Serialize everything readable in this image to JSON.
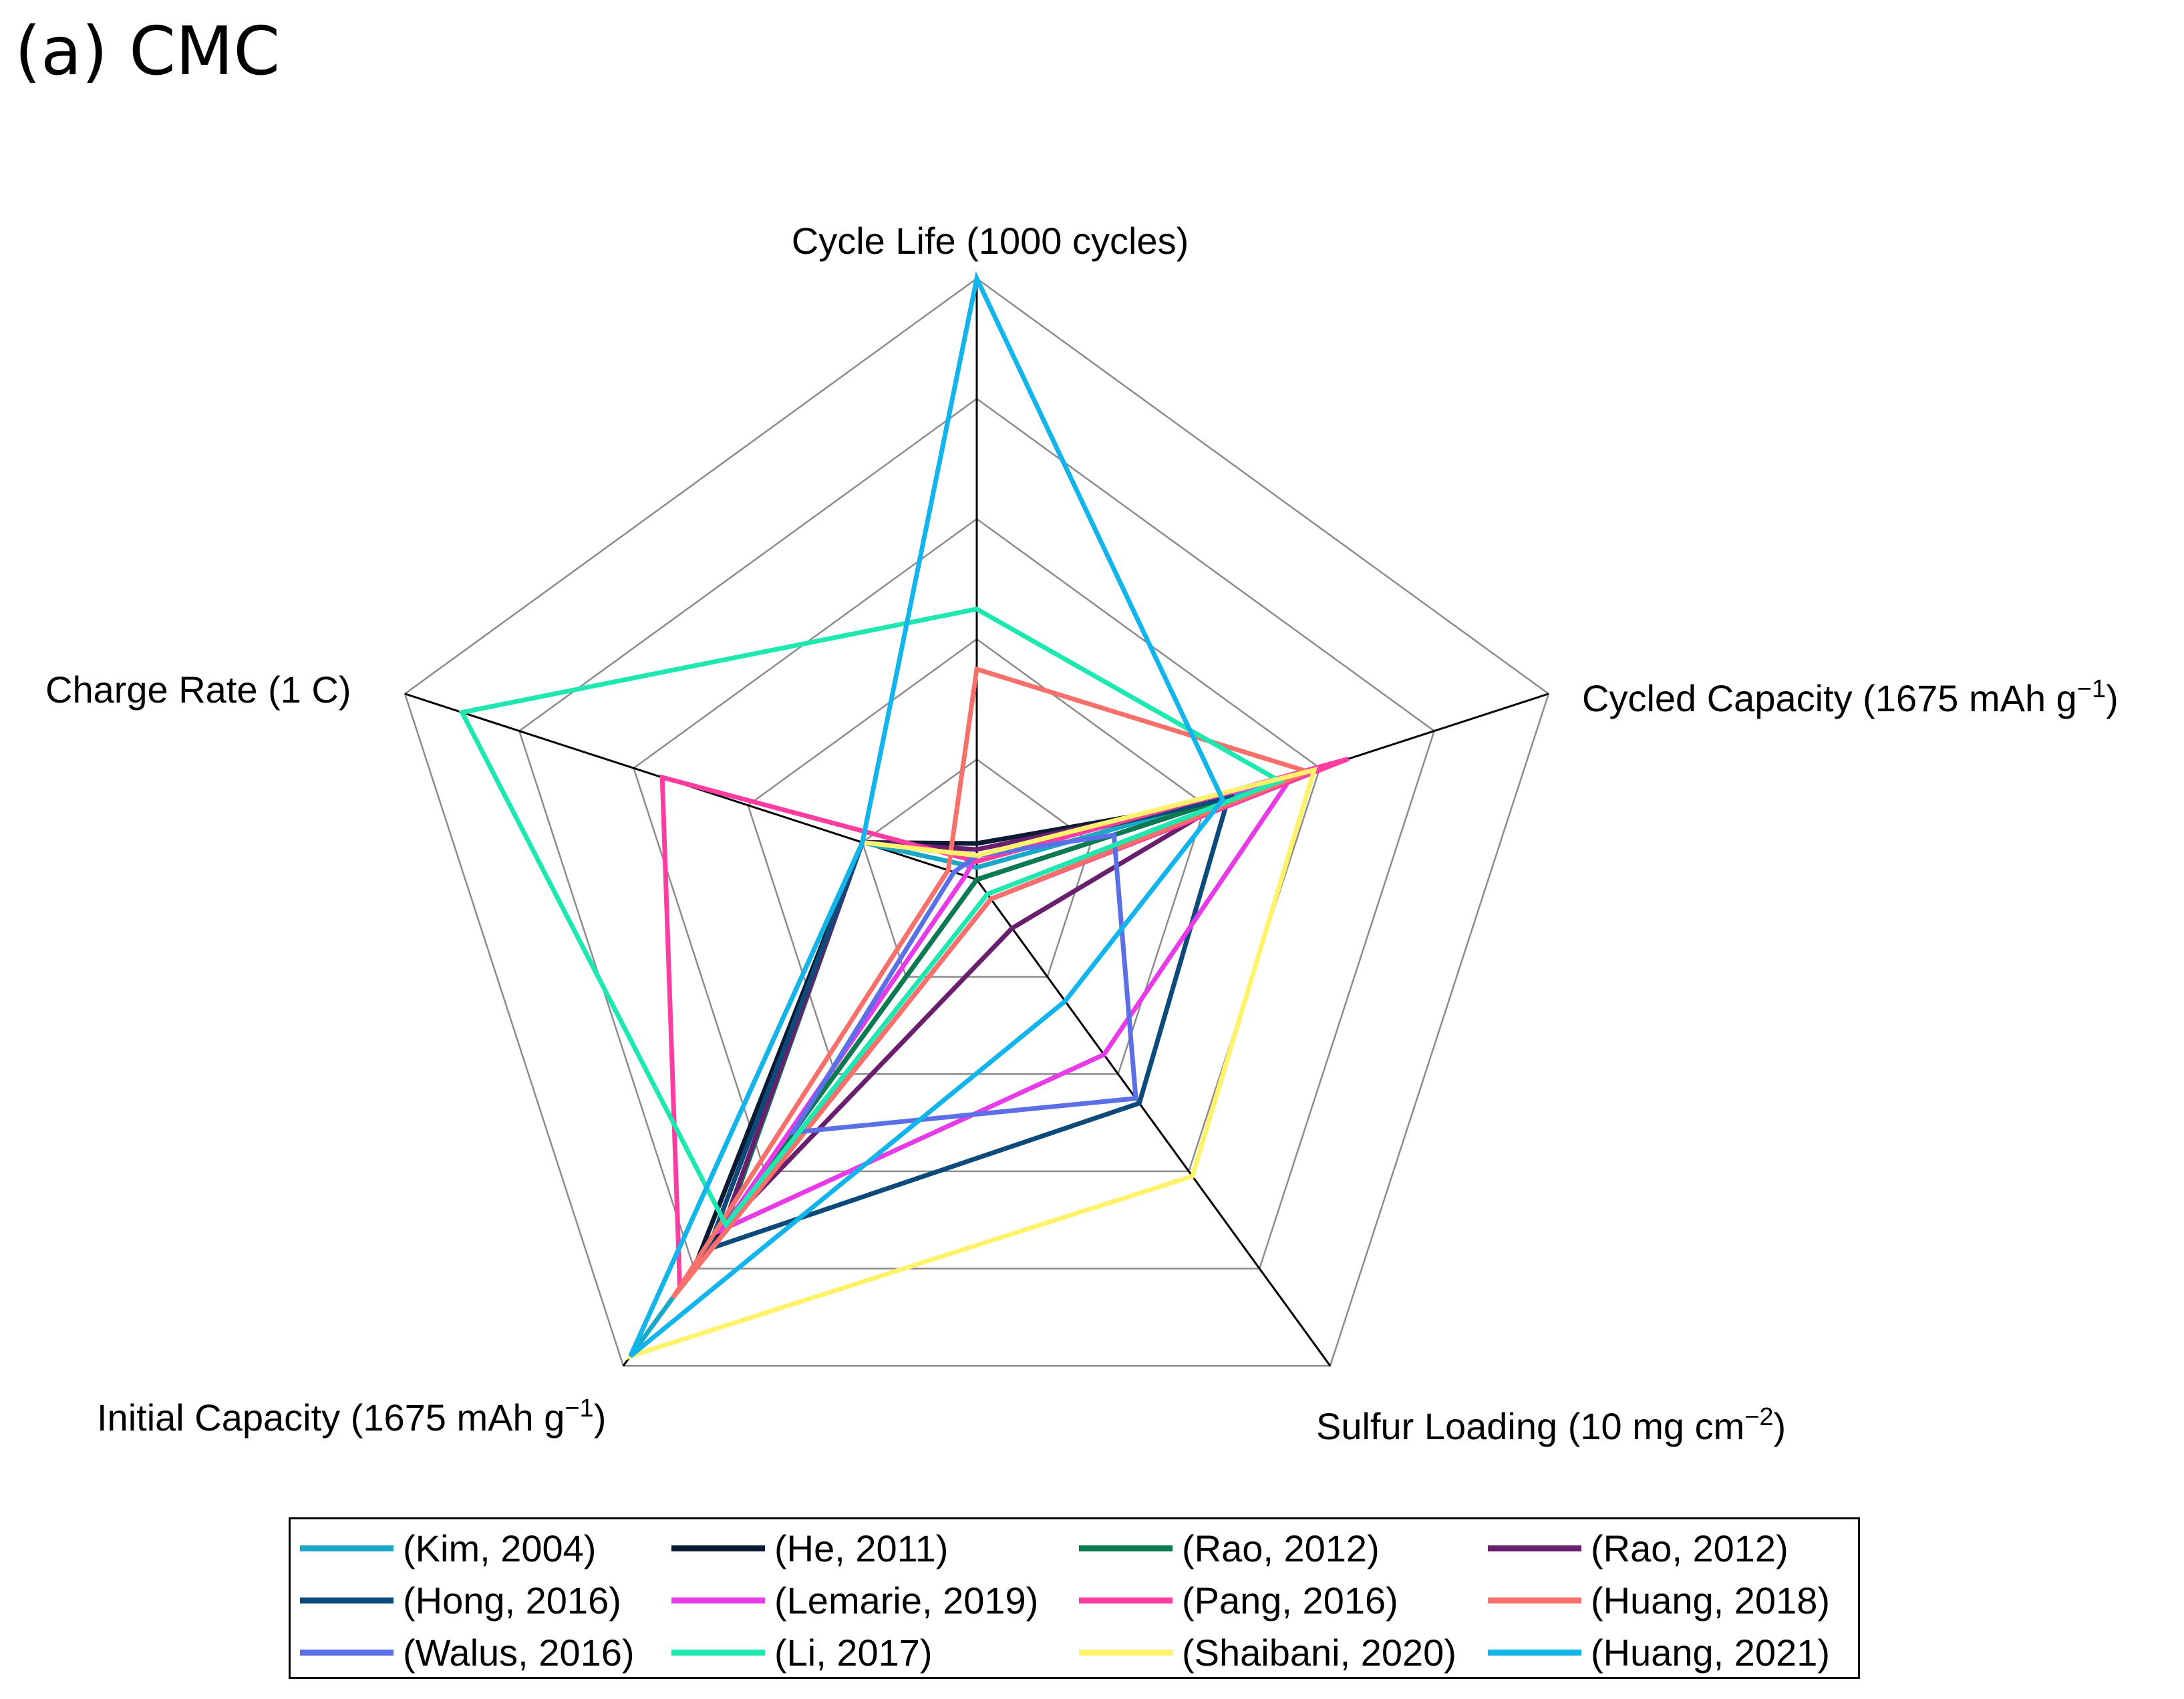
{
  "title": "(a) CMC",
  "chart_data": {
    "type": "radar",
    "title": "(a) CMC",
    "axes": [
      {
        "label_prefix": "Cycle Life (1000 cycles)",
        "label_sup": "",
        "label_suffix": ""
      },
      {
        "label_prefix": "Cycled Capacity (1675 mAh g",
        "label_sup": "−1",
        "label_suffix": ")"
      },
      {
        "label_prefix": "Sulfur Loading (10 mg cm",
        "label_sup": "−2",
        "label_suffix": ")"
      },
      {
        "label_prefix": "Initial Capacity (1675 mAh g",
        "label_sup": "−1",
        "label_suffix": ")"
      },
      {
        "label_prefix": "Charge Rate (1 C)",
        "label_sup": "",
        "label_suffix": ""
      }
    ],
    "axis_max": [
      1000,
      1675,
      10,
      1675,
      1
    ],
    "grid_levels": 5,
    "series": [
      {
        "name": "(Kim, 2004)",
        "color": "#1aa8c8",
        "values": [
          0.02,
          0.48,
          0.0,
          0.98,
          0.2
        ]
      },
      {
        "name": "(He, 2011)",
        "color": "#0a1a33",
        "values": [
          0.06,
          0.42,
          0.0,
          0.8,
          0.2
        ]
      },
      {
        "name": "(Rao, 2012)",
        "color": "#0a7a50",
        "values": [
          0.04,
          0.43,
          0.0,
          0.71,
          0.2
        ]
      },
      {
        "name": "(Rao, 2012)",
        "color": "#6a1f6e",
        "values": [
          0.05,
          0.45,
          0.1,
          0.72,
          0.2
        ]
      },
      {
        "name": "(Hong, 2016)",
        "color": "#0b4a7a",
        "values": [
          0.04,
          0.44,
          0.46,
          0.76,
          0.2
        ]
      },
      {
        "name": "(Lemarie, 2019)",
        "color": "#e83be8",
        "values": [
          0.04,
          0.55,
          0.36,
          0.72,
          0.02
        ]
      },
      {
        "name": "(Pang, 2016)",
        "color": "#ff3ca0",
        "values": [
          0.03,
          0.65,
          0.04,
          0.84,
          0.55
        ]
      },
      {
        "name": "(Huang, 2018)",
        "color": "#f7706a",
        "values": [
          0.35,
          0.58,
          0.04,
          0.86,
          0.05
        ]
      },
      {
        "name": "(Walus, 2016)",
        "color": "#5b6fe6",
        "values": [
          0.04,
          0.24,
          0.45,
          0.52,
          0.04
        ]
      },
      {
        "name": "(Li, 2017)",
        "color": "#1de8b0",
        "values": [
          0.45,
          0.53,
          0.03,
          0.71,
          0.9
        ]
      },
      {
        "name": "(Shaibani, 2020)",
        "color": "#fff36b",
        "values": [
          0.04,
          0.59,
          0.61,
          0.98,
          0.2
        ]
      },
      {
        "name": "(Huang, 2021)",
        "color": "#12b4ec",
        "values": [
          1.0,
          0.43,
          0.25,
          0.98,
          0.2
        ]
      }
    ]
  }
}
